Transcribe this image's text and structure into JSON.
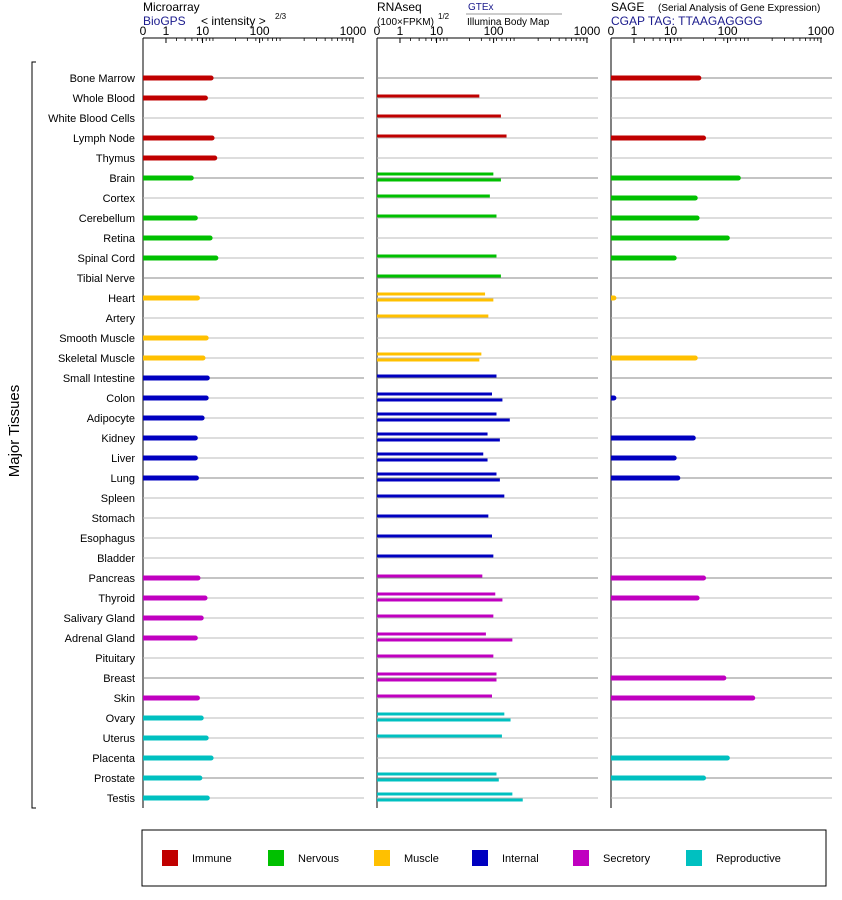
{
  "chart_data": {
    "type": "bar",
    "axis_title": "Major Tissues",
    "panels": [
      {
        "title": "Microarray",
        "source": "BioGPS",
        "units": "< intensity >",
        "units_exponent": "2/3",
        "xscale": "log",
        "ticks": [
          "0",
          "1",
          "10",
          "100",
          "1000"
        ]
      },
      {
        "title": "RNAseq",
        "source_top": "GTEx",
        "source_bottom": "Illumina Body Map",
        "units": "(100×FPKM)",
        "units_exponent": "1/2",
        "xscale": "log",
        "ticks": [
          "0",
          "1",
          "10",
          "100",
          "1000"
        ]
      },
      {
        "title": "SAGE",
        "subtitle": "(Serial Analysis of Gene Expression)",
        "source": "CGAP TAG: TTAAGAGGGG",
        "xscale": "log",
        "ticks": [
          "0",
          "1",
          "10",
          "100",
          "1000"
        ]
      }
    ],
    "categories": [
      "Bone Marrow",
      "Whole Blood",
      "White Blood Cells",
      "Lymph Node",
      "Thymus",
      "Brain",
      "Cortex",
      "Cerebellum",
      "Retina",
      "Spinal Cord",
      "Tibial Nerve",
      "Heart",
      "Artery",
      "Smooth Muscle",
      "Skeletal Muscle",
      "Small Intestine",
      "Colon",
      "Adipocyte",
      "Kidney",
      "Liver",
      "Lung",
      "Spleen",
      "Stomach",
      "Esophagus",
      "Bladder",
      "Pancreas",
      "Thyroid",
      "Salivary Gland",
      "Adrenal Gland",
      "Pituitary",
      "Breast",
      "Skin",
      "Ovary",
      "Uterus",
      "Placenta",
      "Prostate",
      "Testis"
    ],
    "groups": [
      "Immune",
      "Immune",
      "Immune",
      "Immune",
      "Immune",
      "Nervous",
      "Nervous",
      "Nervous",
      "Nervous",
      "Nervous",
      "Nervous",
      "Muscle",
      "Muscle",
      "Muscle",
      "Muscle",
      "Internal",
      "Internal",
      "Internal",
      "Internal",
      "Internal",
      "Internal",
      "Internal",
      "Internal",
      "Internal",
      "Internal",
      "Secretory",
      "Secretory",
      "Secretory",
      "Secretory",
      "Secretory",
      "Secretory",
      "Secretory",
      "Reproductive",
      "Reproductive",
      "Reproductive",
      "Reproductive",
      "Reproductive"
    ],
    "legend": [
      {
        "name": "Immune",
        "color": "#c00000"
      },
      {
        "name": "Nervous",
        "color": "#00c000"
      },
      {
        "name": "Muscle",
        "color": "#ffc000"
      },
      {
        "name": "Internal",
        "color": "#0000c0"
      },
      {
        "name": "Secretory",
        "color": "#c000c0"
      },
      {
        "name": "Reproductive",
        "color": "#00c0c0"
      }
    ],
    "microarray": [
      8.4,
      6.8,
      null,
      8.7,
      9.6,
      3.9,
      null,
      4.6,
      8.1,
      10,
      null,
      5.0,
      null,
      7.0,
      6.2,
      7.3,
      7.0,
      6.0,
      4.6,
      4.6,
      4.8,
      null,
      null,
      null,
      null,
      5.1,
      6.7,
      5.8,
      4.6,
      null,
      null,
      5.0,
      5.8,
      7.0,
      8.4,
      5.5,
      7.3
    ],
    "rnaseq_gtex": [
      null,
      28,
      null,
      null,
      null,
      45,
      null,
      null,
      null,
      null,
      null,
      34,
      null,
      null,
      null,
      null,
      null,
      null,
      null,
      null,
      null,
      null,
      null,
      null,
      null,
      null,
      null,
      null,
      null,
      null,
      null,
      null,
      null,
      null,
      null,
      null,
      null
    ],
    "rnaseq_gtex_all": [
      null,
      28,
      58,
      70,
      null,
      45,
      40,
      50,
      null,
      50,
      58,
      34,
      38,
      null,
      30,
      50,
      43,
      50,
      37,
      32,
      50,
      65,
      38,
      43,
      45,
      31,
      48,
      45,
      35,
      45,
      50,
      43,
      65,
      60,
      null,
      50,
      85
    ],
    "rnaseq_ibm": [
      null,
      null,
      null,
      null,
      null,
      58,
      null,
      null,
      null,
      null,
      null,
      45,
      null,
      null,
      28,
      null,
      61,
      78,
      56,
      37,
      56,
      null,
      null,
      null,
      null,
      null,
      61,
      null,
      85,
      null,
      50,
      null,
      80,
      null,
      null,
      54,
      120
    ],
    "sage": [
      17,
      null,
      null,
      20,
      null,
      65,
      15,
      16,
      45,
      7,
      null,
      0.1,
      null,
      null,
      15,
      null,
      0.1,
      null,
      14,
      7,
      8,
      null,
      null,
      null,
      null,
      20,
      16,
      null,
      null,
      null,
      40,
      105,
      null,
      null,
      45,
      20,
      null
    ]
  }
}
